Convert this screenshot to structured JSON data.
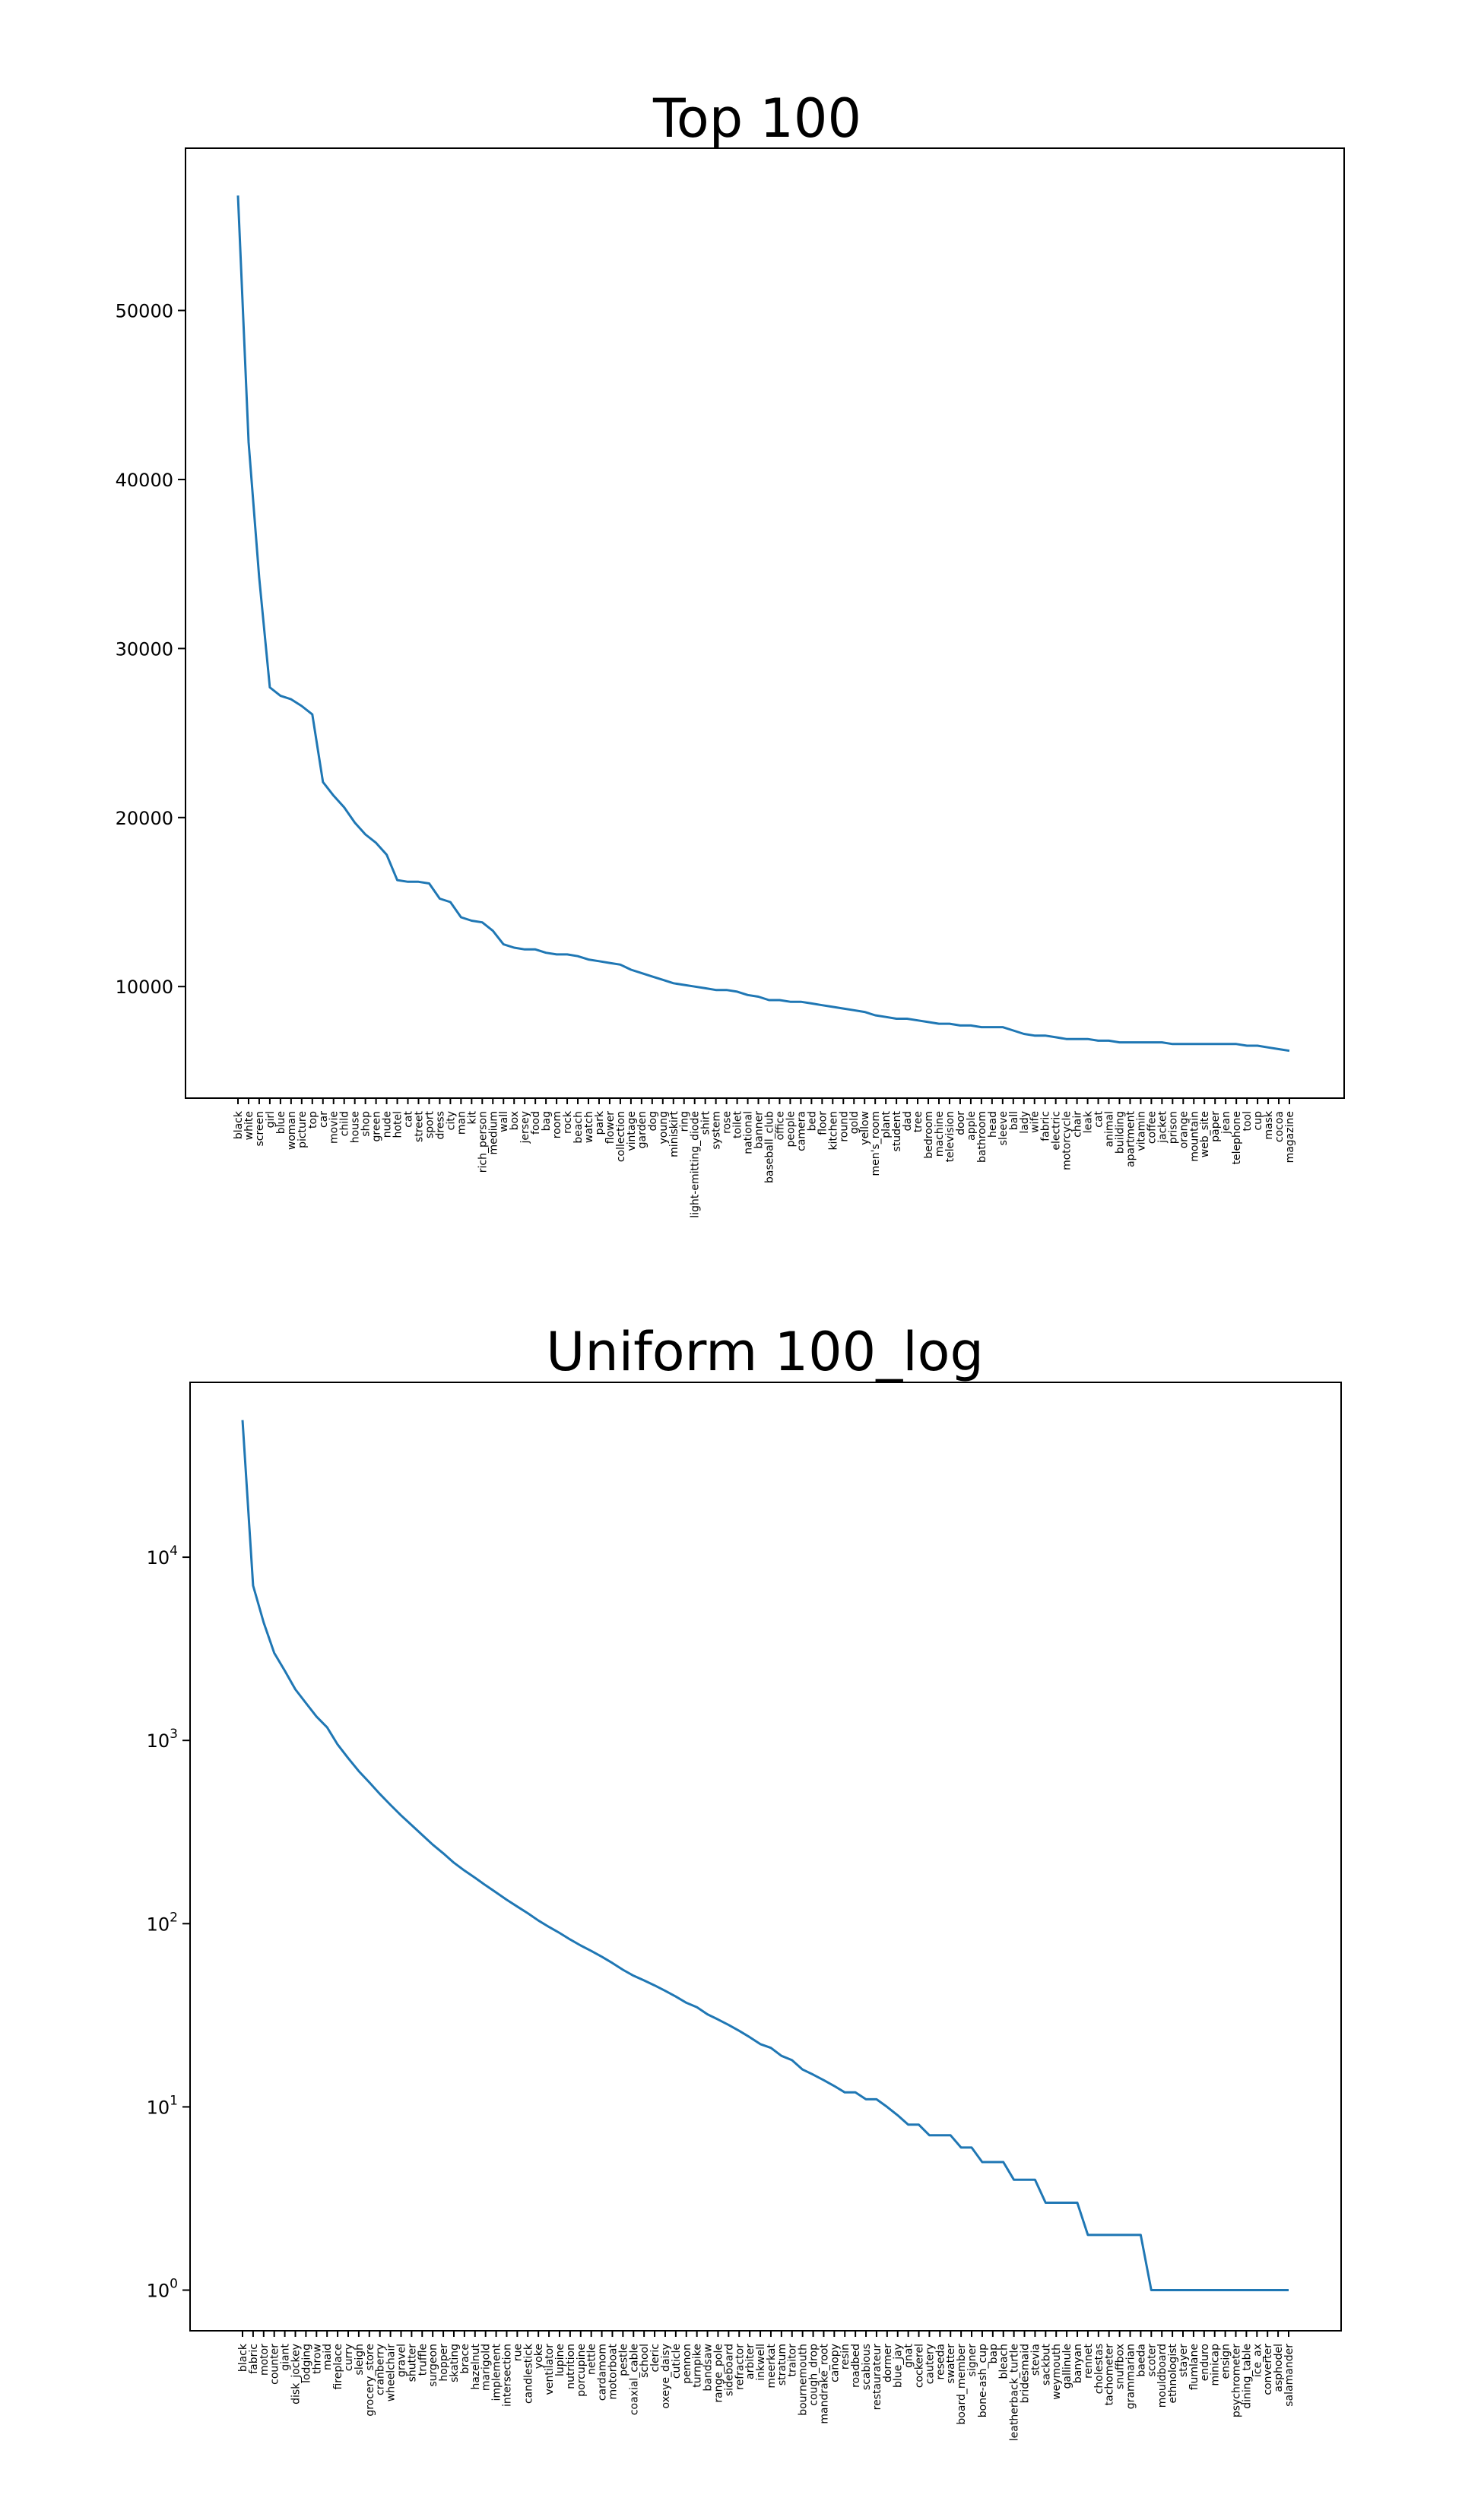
{
  "chart_data": [
    {
      "type": "line",
      "title": "Top 100",
      "xlabel": "",
      "ylabel": "",
      "yscale": "linear",
      "ylim": [
        3400,
        59600
      ],
      "yticks": [
        10000,
        20000,
        30000,
        40000,
        50000
      ],
      "ytick_labels": [
        "10000",
        "20000",
        "30000",
        "40000",
        "50000"
      ],
      "grid": false,
      "color": "#1f77b4",
      "categories": [
        "black",
        "white",
        "screen",
        "girl",
        "blue",
        "woman",
        "picture",
        "top",
        "car",
        "movie",
        "child",
        "house",
        "shop",
        "green",
        "nude",
        "hotel",
        "cat",
        "street",
        "sport",
        "dress",
        "city",
        "man",
        "kit",
        "rich_person",
        "medium",
        "wall",
        "box",
        "jersey",
        "food",
        "bag",
        "room",
        "rock",
        "beach",
        "watch",
        "park",
        "flower",
        "collection",
        "vintage",
        "garden",
        "dog",
        "young",
        "miniskirt",
        "ring",
        "light-emitting_diode",
        "shirt",
        "system",
        "rose",
        "toilet",
        "national",
        "banner",
        "baseball_club",
        "office",
        "people",
        "camera",
        "bed",
        "floor",
        "kitchen",
        "round",
        "gold",
        "yellow",
        "men's_room",
        "plant",
        "student",
        "dad",
        "tree",
        "bedroom",
        "machine",
        "television",
        "door",
        "apple",
        "bathroom",
        "head",
        "sleeve",
        "ball",
        "lady",
        "wife",
        "fabric",
        "electric",
        "motorcycle",
        "chair",
        "leak",
        "cat",
        "animal",
        "building",
        "apartment",
        "vitamin",
        "coffee",
        "jacket",
        "prison",
        "orange",
        "mountain",
        "web_site",
        "paper",
        "jean",
        "telephone",
        "tool",
        "cup",
        "mask",
        "cocoa",
        "magazine"
      ],
      "values": [
        56800,
        42200,
        34200,
        27700,
        27200,
        27000,
        26600,
        26100,
        22100,
        21300,
        20600,
        19700,
        19000,
        18500,
        17800,
        16300,
        16200,
        16200,
        16100,
        15200,
        15000,
        14100,
        13900,
        13800,
        13300,
        12500,
        12300,
        12200,
        12200,
        12000,
        11900,
        11900,
        11800,
        11600,
        11500,
        11400,
        11300,
        11000,
        10800,
        10600,
        10400,
        10200,
        10100,
        10000,
        9900,
        9800,
        9800,
        9700,
        9500,
        9400,
        9200,
        9200,
        9100,
        9100,
        9000,
        8900,
        8800,
        8700,
        8600,
        8500,
        8300,
        8200,
        8100,
        8100,
        8000,
        7900,
        7800,
        7800,
        7700,
        7700,
        7600,
        7600,
        7600,
        7400,
        7200,
        7100,
        7100,
        7000,
        6900,
        6900,
        6900,
        6800,
        6800,
        6700,
        6700,
        6700,
        6700,
        6700,
        6600,
        6600,
        6600,
        6600,
        6600,
        6600,
        6600,
        6500,
        6500,
        6400,
        6300,
        6200
      ]
    },
    {
      "type": "line",
      "title": "Uniform 100_log",
      "xlabel": "",
      "ylabel": "",
      "yscale": "log",
      "ylim": [
        0.6,
        90000
      ],
      "yticks": [
        1,
        10,
        100,
        1000,
        10000
      ],
      "ytick_labels": [
        [
          "10",
          "0"
        ],
        [
          "10",
          "1"
        ],
        [
          "10",
          "2"
        ],
        [
          "10",
          "3"
        ],
        [
          "10",
          "4"
        ]
      ],
      "grid": false,
      "color": "#1f77b4",
      "categories": [
        "black",
        "fabric",
        "motor",
        "counter",
        "giant",
        "disk_jockey",
        "lodging",
        "throw",
        "maid",
        "fireplace",
        "curry",
        "sleigh",
        "grocery_store",
        "cranberry",
        "wheelchair",
        "gravel",
        "shutter",
        "truffle",
        "surgeon",
        "hopper",
        "skating",
        "brace",
        "hazelnut",
        "marigold",
        "implement",
        "intersection",
        "rue",
        "candlestick",
        "yoke",
        "ventilator",
        "lupine",
        "nutrition",
        "porcupine",
        "nettle",
        "cardamom",
        "motorboat",
        "pestle",
        "coaxial_cable",
        "school",
        "cleric",
        "oxeye_daisy",
        "cuticle",
        "pennon",
        "turnpike",
        "bandsaw",
        "range_pole",
        "sideboard",
        "refractor",
        "arbiter",
        "inkwell",
        "meerkat",
        "stratum",
        "traitor",
        "bournemouth",
        "cough_drop",
        "mandrake_root",
        "canopy",
        "resin",
        "roadbed",
        "scabious",
        "restaurateur",
        "dormer",
        "blue_jay",
        "gnat",
        "cockerel",
        "cautery",
        "reseda",
        "swatter",
        "board_member",
        "signer",
        "bone-ash_cup",
        "bap",
        "bleach",
        "leatherback_turtle",
        "bridesmaid",
        "stevia",
        "sackbut",
        "weymouth",
        "gallinule",
        "banyan",
        "rennet",
        "cholestas",
        "tachometer",
        "snuffbox",
        "grammarian",
        "baeda",
        "scoter",
        "mouldboard",
        "ethnologist",
        "stayer",
        "flumlane",
        "enduro",
        "minicap",
        "ensign",
        "psychrometer",
        "dining_table",
        "ice_ax",
        "converter",
        "asphodel",
        "salamander"
      ],
      "values": [
        56000,
        7000,
        4400,
        3000,
        2400,
        1900,
        1600,
        1350,
        1180,
        950,
        800,
        680,
        590,
        510,
        445,
        390,
        345,
        305,
        270,
        242,
        215,
        195,
        178,
        162,
        148,
        135,
        124,
        114,
        104,
        96,
        89,
        82,
        76,
        71,
        66,
        61,
        56,
        52,
        49,
        46,
        43,
        40,
        37,
        35,
        32,
        30,
        28,
        26,
        24,
        22,
        21,
        19,
        18,
        16,
        15,
        14,
        13,
        12,
        12,
        11,
        11,
        10,
        9,
        8,
        8,
        7,
        7,
        7,
        6,
        6,
        5,
        5,
        5,
        4,
        4,
        4,
        3,
        3,
        3,
        3,
        2,
        2,
        2,
        2,
        2,
        2,
        1,
        1,
        1,
        1,
        1,
        1,
        1,
        1,
        1,
        1,
        1,
        1,
        1,
        1
      ]
    }
  ]
}
